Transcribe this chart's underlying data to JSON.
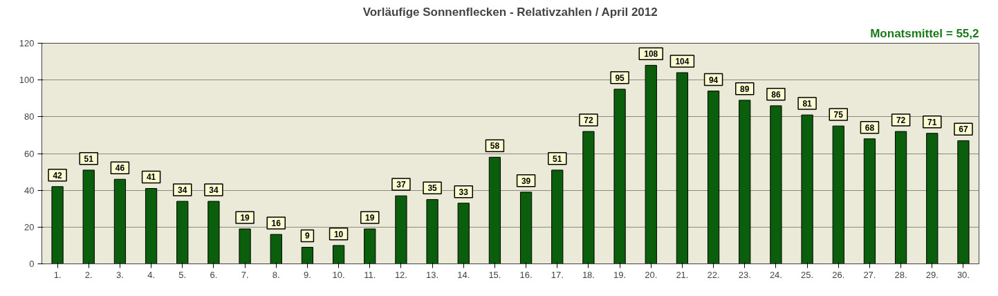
{
  "chart_data": {
    "type": "bar",
    "title": "Vorläufige Sonnenflecken - Relativzahlen / April 2012",
    "annotations": [
      "Monatsmittel = 55,2"
    ],
    "categories": [
      "1.",
      "2.",
      "3.",
      "4.",
      "5.",
      "6.",
      "7.",
      "8.",
      "9.",
      "10.",
      "11.",
      "12.",
      "13.",
      "14.",
      "15.",
      "16.",
      "17.",
      "18.",
      "19.",
      "20.",
      "21.",
      "22.",
      "23.",
      "24.",
      "25.",
      "26.",
      "27.",
      "28.",
      "29.",
      "30."
    ],
    "values": [
      42,
      51,
      46,
      41,
      34,
      34,
      19,
      16,
      9,
      10,
      19,
      37,
      35,
      33,
      58,
      39,
      51,
      72,
      95,
      108,
      104,
      94,
      89,
      86,
      81,
      75,
      68,
      72,
      71,
      67
    ],
    "color": "#0b5e0b",
    "ylim": [
      0,
      120
    ],
    "yticks": [
      0,
      20,
      40,
      60,
      80,
      100,
      120
    ],
    "grid": "y",
    "data_labels": true
  }
}
